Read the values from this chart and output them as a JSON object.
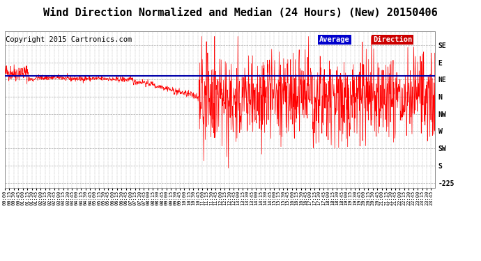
{
  "title": "Wind Direction Normalized and Median (24 Hours) (New) 20150406",
  "copyright": "Copyright 2015 Cartronics.com",
  "ytick_labels": [
    "SE",
    "E",
    "NE",
    "N",
    "NW",
    "W",
    "SW",
    "S",
    "-225"
  ],
  "ytick_values": [
    8,
    7,
    6,
    5,
    4,
    3,
    2,
    1,
    0
  ],
  "ylim": [
    -0.3,
    8.8
  ],
  "average_direction_value": 6.2,
  "legend_text1": "Average",
  "legend_text2": "Direction",
  "legend_bg1": "#0000cc",
  "legend_bg2": "#cc0000",
  "legend_text_color": "#ffffff",
  "line_color": "#ff0000",
  "avg_line_color": "#0000aa",
  "grid_color": "#aaaaaa",
  "bg_color": "#ffffff",
  "title_fontsize": 11,
  "copyright_fontsize": 7.5,
  "tick_fontsize": 7,
  "xtick_fontsize": 5
}
